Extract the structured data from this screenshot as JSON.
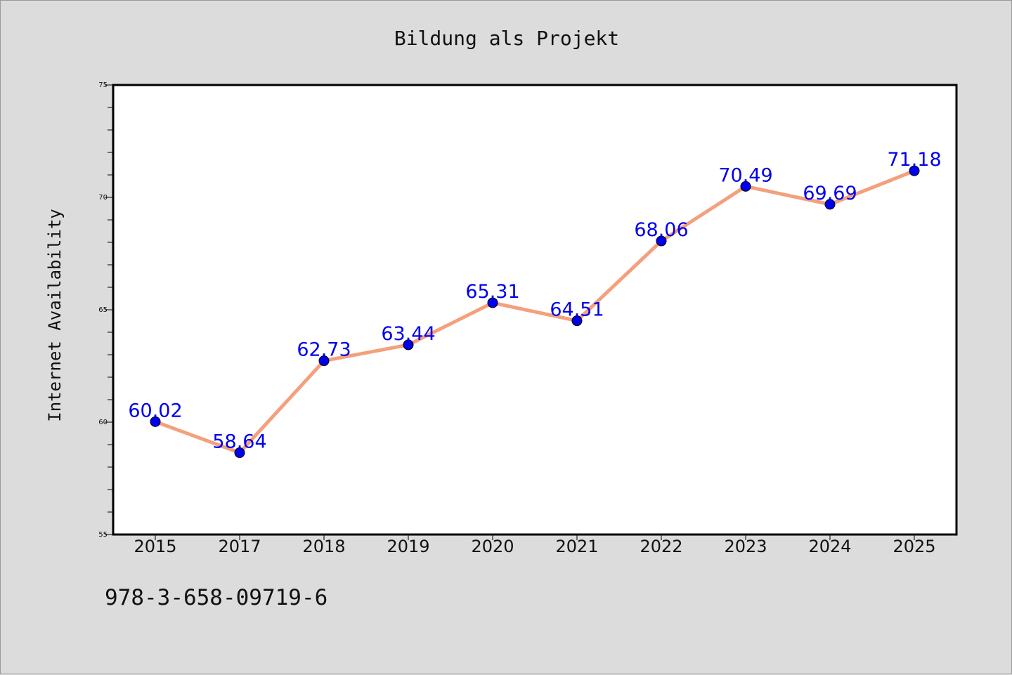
{
  "chart_data": {
    "type": "line",
    "title": "Bildung als Projekt",
    "xlabel": "",
    "ylabel": "Internet Availability",
    "categories": [
      "2015",
      "2017",
      "2018",
      "2019",
      "2020",
      "2021",
      "2022",
      "2023",
      "2024",
      "2025"
    ],
    "values": [
      60.02,
      58.64,
      62.73,
      63.44,
      65.31,
      64.51,
      68.06,
      70.49,
      69.69,
      71.18
    ],
    "data_labels": [
      "60.02",
      "58.64",
      "62.73",
      "63.44",
      "65.31",
      "64.51",
      "68.06",
      "70.49",
      "69.69",
      "71.18"
    ],
    "ylim": [
      55,
      75
    ],
    "yticks": [
      55,
      60,
      65,
      70,
      75
    ],
    "ytick_labels": [
      "55",
      "60",
      "65",
      "70",
      "75"
    ],
    "yminor_step": 1,
    "grid": false,
    "legend": "none",
    "colors": {
      "line": "#f4a07c",
      "marker": "#0000ee",
      "label": "#0000ee",
      "plot_bg": "#ffffff",
      "page_bg": "#dcdcdc"
    }
  },
  "footer": {
    "isbn": "978-3-658-09719-6"
  }
}
